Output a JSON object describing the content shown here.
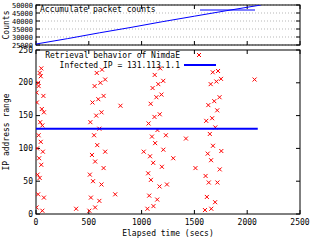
{
  "chart_data": [
    {
      "type": "line",
      "ylabel": "Counts",
      "x": [
        0,
        300,
        600,
        900,
        1200,
        1500,
        1800,
        2130
      ],
      "series": [
        {
          "name": "Accumulate packet counts",
          "color": "#0000ff",
          "values": [
            25600,
            29000,
            32600,
            36000,
            39600,
            43000,
            46400,
            50000
          ]
        }
      ],
      "xlim": [
        0,
        2500
      ],
      "xticks": [
        0,
        500,
        1000,
        1500,
        2000,
        2500
      ],
      "ylim": [
        25000,
        50000
      ],
      "yticks": [
        25000,
        30000,
        35000,
        40000,
        45000,
        50000
      ],
      "grid": true,
      "tick_labels": "y"
    },
    {
      "type": "scatter",
      "xlabel": "Elapsed time (secs)",
      "ylabel": "IP address range",
      "series": [
        {
          "name": "Retrieval behavior of NimdaE",
          "type": "scatter",
          "marker": "x",
          "color": "#ff0000",
          "x": [
            5,
            20,
            35,
            50,
            65,
            10,
            25,
            40,
            55,
            70,
            5,
            20,
            35,
            50,
            60,
            75,
            15,
            30,
            45,
            60,
            75,
            8,
            25,
            45,
            505,
            520,
            540,
            560,
            580,
            600,
            620,
            640,
            655,
            510,
            530,
            550,
            570,
            590,
            610,
            625,
            515,
            535,
            555,
            575,
            600,
            620,
            640,
            655,
            560,
            1055,
            1072,
            1088,
            1110,
            1128,
            1150,
            1172,
            1188,
            1205,
            1062,
            1080,
            1098,
            1122,
            1140,
            1158,
            1176,
            1066,
            1086,
            1104,
            1124,
            1148,
            1170,
            1192,
            1206,
            1112,
            1600,
            1618,
            1636,
            1658,
            1676,
            1698,
            1716,
            1738,
            1752,
            1606,
            1626,
            1646,
            1668,
            1688,
            1708,
            1724,
            1612,
            1632,
            1654,
            1674,
            1696,
            1718,
            1740,
            1755,
            1660,
            380,
            800,
            1020,
            1300,
            1510,
            1420,
            2070,
            1230,
            750,
            1240
          ],
          "values": [
            10,
            30,
            55,
            75,
            95,
            100,
            120,
            140,
            160,
            180,
            185,
            200,
            215,
            222,
            5,
            25,
            60,
            85,
            110,
            135,
            155,
            170,
            195,
            210,
            5,
            25,
            50,
            80,
            105,
            130,
            155,
            180,
            205,
            60,
            90,
            120,
            150,
            175,
            200,
            220,
            140,
            170,
            195,
            215,
            20,
            45,
            70,
            95,
            10,
            8,
            28,
            52,
            78,
            108,
            128,
            152,
            182,
            203,
            62,
            88,
            118,
            148,
            178,
            198,
            222,
            138,
            168,
            192,
            212,
            22,
            42,
            72,
            98,
            12,
            6,
            26,
            48,
            82,
            104,
            132,
            158,
            178,
            206,
            58,
            92,
            122,
            146,
            172,
            202,
            218,
            142,
            166,
            198,
            216,
            18,
            48,
            68,
            96,
            8,
            8,
            165,
            95,
            85,
            70,
            115,
            205,
            120,
            30,
            45
          ]
        },
        {
          "name": "Infected IP = 131.113.1.1",
          "type": "line",
          "color": "#0000ff",
          "x": [
            0,
            2100
          ],
          "values": [
            130,
            130
          ]
        }
      ],
      "xlim": [
        0,
        2500
      ],
      "xticks": [
        0,
        500,
        1000,
        1500,
        2000,
        2500
      ],
      "ylim": [
        0,
        250
      ],
      "yticks": [
        0,
        50,
        100,
        150,
        200,
        250
      ],
      "grid": false
    }
  ]
}
